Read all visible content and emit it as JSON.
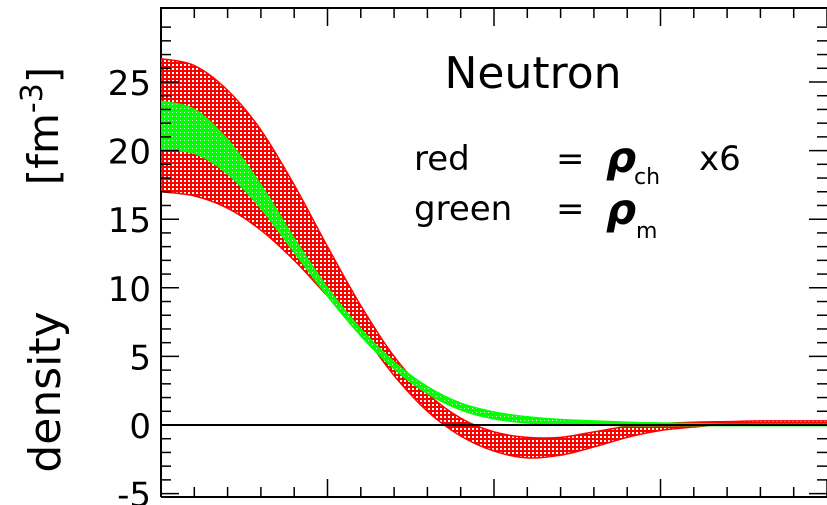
{
  "chart_data": {
    "type": "area",
    "title": "Neutron",
    "ylabel": "density",
    "yunit": "[fm",
    "yunit_exp": "-3",
    "yunit_close": "]",
    "xlabel": "",
    "ylim": [
      -5,
      30
    ],
    "xlim": [
      0,
      10
    ],
    "grid": false,
    "yticks": [
      -5,
      0,
      5,
      10,
      15,
      20,
      25
    ],
    "ytick_labels": [
      "-5",
      "0",
      "5",
      "10",
      "15",
      "20",
      "25"
    ],
    "legend": {
      "line1_label": "red",
      "line1_eq": "=",
      "line1_symbol": "ρ",
      "line1_sub": "ch",
      "line1_factor": "x6",
      "line2_label": "green",
      "line2_eq": "=",
      "line2_symbol": "ρ",
      "line2_sub": "m"
    },
    "series": [
      {
        "name": "red",
        "color": "#ff0000",
        "x": [
          0,
          0.5,
          1.0,
          1.5,
          2.0,
          2.5,
          3.0,
          3.5,
          4.0,
          4.5,
          5.0,
          5.5,
          6.0,
          6.5,
          7.0,
          7.5,
          8.0,
          8.5,
          9.0,
          9.5,
          10.0
        ],
        "upper": [
          26.7,
          26.2,
          24.4,
          21.5,
          17.5,
          13.0,
          8.7,
          5.0,
          2.3,
          0.5,
          -0.5,
          -0.9,
          -0.9,
          -0.5,
          -0.1,
          0.1,
          0.2,
          0.25,
          0.3,
          0.3,
          0.3
        ],
        "lower": [
          17.0,
          16.7,
          15.8,
          14.2,
          12.0,
          9.4,
          6.8,
          3.6,
          1.0,
          -0.8,
          -1.9,
          -2.4,
          -2.2,
          -1.6,
          -0.9,
          -0.4,
          -0.15,
          0.05,
          0.05,
          0.05,
          0.05
        ]
      },
      {
        "name": "green",
        "color": "#00ff00",
        "x": [
          0,
          0.5,
          1.0,
          1.5,
          2.0,
          2.5,
          3.0,
          3.5,
          4.0,
          4.5,
          5.0,
          5.5,
          6.0,
          6.5,
          7.0,
          7.5,
          8.0,
          8.5,
          9.0,
          9.5,
          10.0
        ],
        "upper": [
          23.6,
          23.0,
          20.8,
          17.5,
          13.6,
          10.0,
          7.0,
          4.6,
          2.8,
          1.6,
          0.95,
          0.6,
          0.4,
          0.3,
          0.2,
          0.15,
          0.1,
          0.05,
          0.05,
          0.05,
          0.05
        ],
        "lower": [
          20.0,
          19.8,
          18.3,
          15.8,
          12.6,
          9.4,
          6.5,
          4.1,
          2.3,
          1.1,
          0.45,
          0.15,
          0.05,
          0.0,
          -0.05,
          -0.05,
          -0.05,
          -0.05,
          -0.05,
          -0.05,
          -0.05
        ]
      }
    ],
    "zero_line": true
  }
}
